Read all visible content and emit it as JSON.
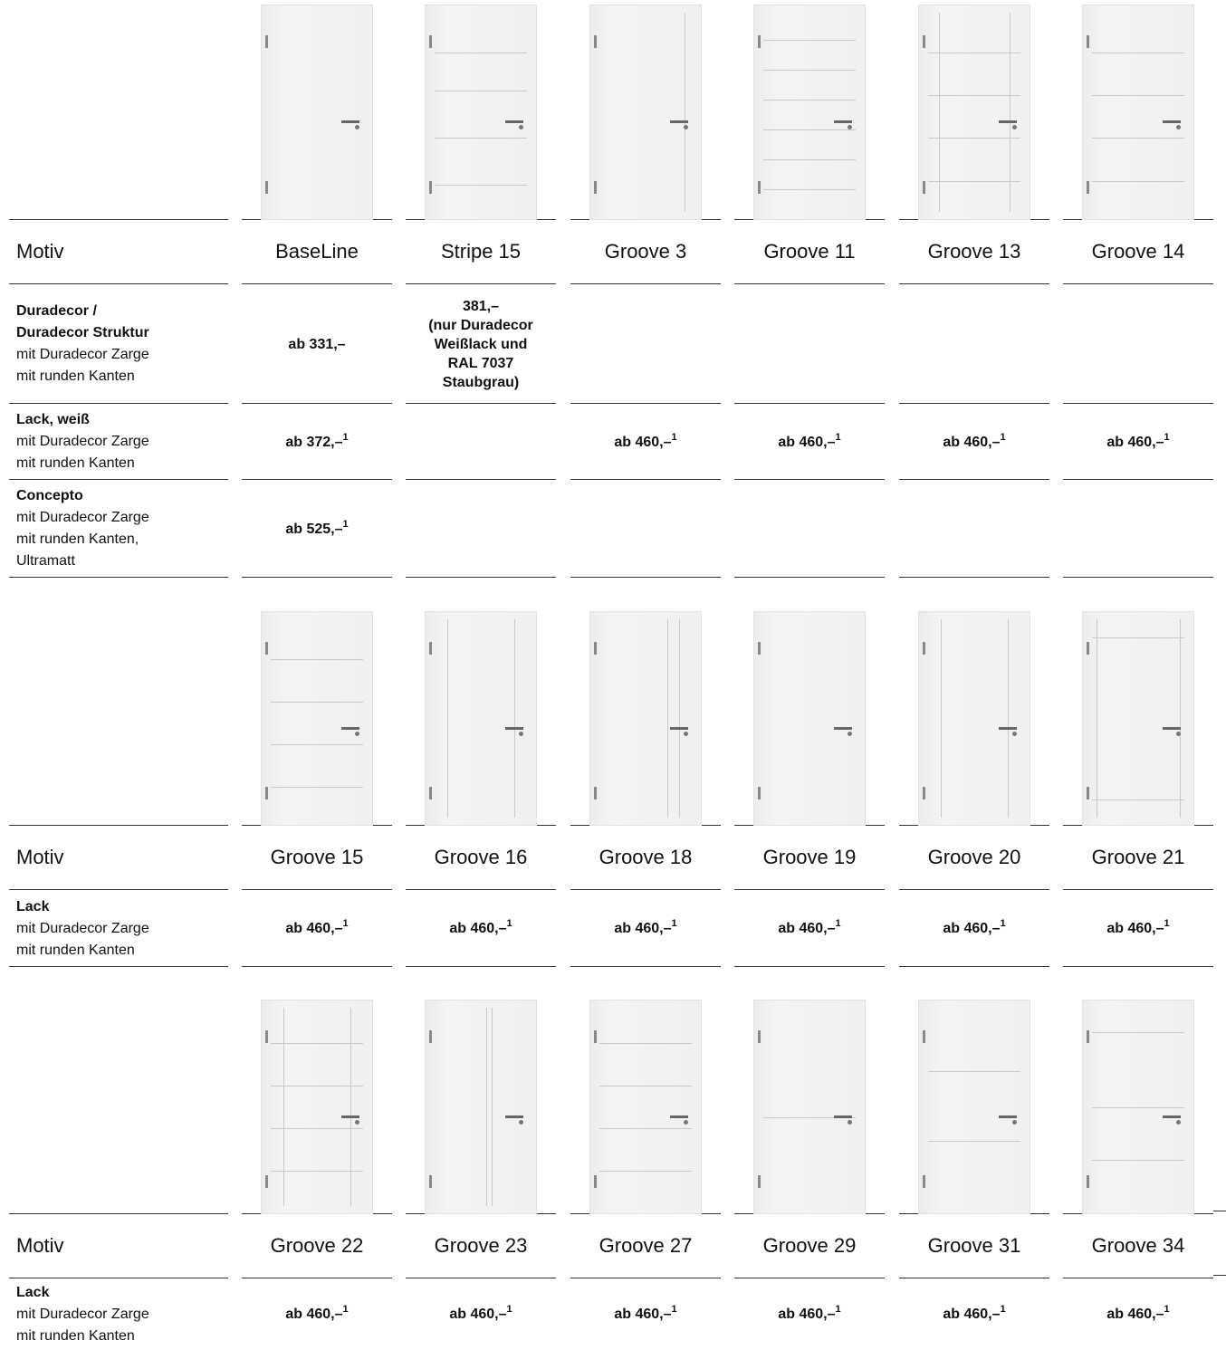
{
  "sections": [
    {
      "motiv_label": "Motiv",
      "motifs": [
        "BaseLine",
        "Stripe 15",
        "Groove 3",
        "Groove 11",
        "Groove 13",
        "Groove 14"
      ],
      "rows": [
        {
          "title": [
            "Duradecor /",
            "Duradecor Struktur"
          ],
          "desc": [
            "mit Duradecor Zarge",
            "mit runden Kanten"
          ],
          "prices": [
            {
              "lines": [
                "ab 331,–"
              ]
            },
            {
              "lines": [
                "381,–",
                "(nur Duradecor",
                "Weißlack und",
                "RAL 7037",
                "Staubgrau)"
              ]
            },
            null,
            null,
            null,
            null
          ]
        },
        {
          "title": [
            "Lack, weiß"
          ],
          "desc": [
            "mit Duradecor Zarge",
            "mit runden Kanten"
          ],
          "prices": [
            {
              "lines": [
                "ab 372,–"
              ],
              "note": "1"
            },
            null,
            {
              "lines": [
                "ab 460,–"
              ],
              "note": "1"
            },
            {
              "lines": [
                "ab 460,–"
              ],
              "note": "1"
            },
            {
              "lines": [
                "ab 460,–"
              ],
              "note": "1"
            },
            {
              "lines": [
                "ab 460,–"
              ],
              "note": "1"
            }
          ]
        },
        {
          "title": [
            "Concepto"
          ],
          "desc": [
            "mit Duradecor Zarge",
            "mit runden Kanten,",
            "Ultramatt"
          ],
          "prices": [
            {
              "lines": [
                "ab 525,–"
              ],
              "note": "1"
            },
            null,
            null,
            null,
            null,
            null
          ]
        }
      ]
    },
    {
      "motiv_label": "Motiv",
      "motifs": [
        "Groove 15",
        "Groove 16",
        "Groove 18",
        "Groove 19",
        "Groove 20",
        "Groove 21"
      ],
      "rows": [
        {
          "title": [
            "Lack"
          ],
          "desc": [
            "mit Duradecor Zarge",
            "mit runden Kanten"
          ],
          "prices": [
            {
              "lines": [
                "ab 460,–"
              ],
              "note": "1"
            },
            {
              "lines": [
                "ab 460,–"
              ],
              "note": "1"
            },
            {
              "lines": [
                "ab 460,–"
              ],
              "note": "1"
            },
            {
              "lines": [
                "ab 460,–"
              ],
              "note": "1"
            },
            {
              "lines": [
                "ab 460,–"
              ],
              "note": "1"
            },
            {
              "lines": [
                "ab 460,–"
              ],
              "note": "1"
            }
          ]
        }
      ]
    },
    {
      "motiv_label": "Motiv",
      "motifs": [
        "Groove 22",
        "Groove 23",
        "Groove 27",
        "Groove 29",
        "Groove 31",
        "Groove 34"
      ],
      "rows": [
        {
          "title": [
            "Lack"
          ],
          "desc": [
            "mit Duradecor Zarge",
            "mit runden Kanten"
          ],
          "prices": [
            {
              "lines": [
                "ab 460,–"
              ],
              "note": "1"
            },
            {
              "lines": [
                "ab 460,–"
              ],
              "note": "1"
            },
            {
              "lines": [
                "ab 460,–"
              ],
              "note": "1"
            },
            {
              "lines": [
                "ab 460,–"
              ],
              "note": "1"
            },
            {
              "lines": [
                "ab 460,–"
              ],
              "note": "1"
            },
            {
              "lines": [
                "ab 460,–"
              ],
              "note": "1"
            }
          ]
        }
      ]
    }
  ]
}
